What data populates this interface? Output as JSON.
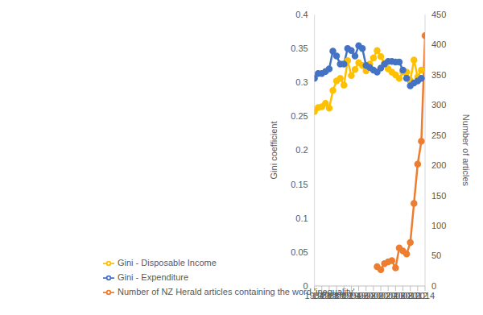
{
  "chart_data": {
    "type": "line",
    "x": [
      1984,
      1985,
      1986,
      1987,
      1988,
      1989,
      1990,
      1991,
      1992,
      1993,
      1994,
      1995,
      1996,
      1997,
      1998,
      1999,
      2000,
      2001,
      2002,
      2003,
      2004,
      2005,
      2006,
      2007,
      2008,
      2009,
      2010,
      2011,
      2012,
      2013,
      2014
    ],
    "series": [
      {
        "name": "Gini - Disposable Income",
        "color": "#ffc000",
        "marker": "circle",
        "values": [
          0.257,
          0.263,
          0.264,
          0.269,
          0.262,
          0.288,
          0.302,
          0.306,
          0.296,
          0.332,
          0.31,
          0.319,
          0.329,
          0.325,
          0.317,
          0.327,
          0.336,
          0.347,
          0.338,
          0.328,
          0.32,
          0.315,
          0.311,
          0.306,
          0.315,
          0.315,
          0.303,
          0.333,
          0.308,
          0.318,
          null
        ]
      },
      {
        "name": "Gini - Expenditure",
        "color": "#4472c4",
        "marker": "circle",
        "values": [
          0.306,
          0.313,
          0.313,
          0.316,
          0.32,
          0.346,
          0.339,
          0.327,
          0.327,
          0.35,
          0.347,
          0.339,
          0.354,
          0.35,
          0.325,
          0.322,
          0.318,
          0.315,
          0.321,
          0.327,
          0.331,
          0.331,
          0.33,
          0.33,
          0.318,
          0.306,
          0.295,
          0.299,
          0.302,
          0.306,
          null
        ]
      },
      {
        "name": "Number of NZ Herald articles containing the word 'inequality'",
        "color": "#ed7d31",
        "marker": "circle",
        "axis": "y2",
        "values": [
          null,
          null,
          null,
          null,
          null,
          null,
          null,
          null,
          null,
          null,
          null,
          null,
          null,
          null,
          null,
          null,
          null,
          32,
          27,
          37,
          40,
          42,
          30,
          63,
          58,
          53,
          72,
          137,
          202,
          240,
          415
        ]
      }
    ],
    "y_label": "Gini coefficient",
    "y2_label": "Number of articles",
    "xlim": [
      1984,
      2014
    ],
    "xticks": [
      1984,
      1986,
      1988,
      1990,
      1992,
      1994,
      1996,
      1998,
      2000,
      2002,
      2004,
      2006,
      2008,
      2010,
      2012,
      2014
    ],
    "ylim": [
      0,
      0.4
    ],
    "yticks": [
      0,
      0.05,
      0.1,
      0.15,
      0.2,
      0.25,
      0.3,
      0.35,
      0.4
    ],
    "y2lim": [
      0,
      450
    ],
    "y2ticks": [
      0,
      50,
      100,
      150,
      200,
      250,
      300,
      350,
      400,
      450
    ],
    "grid": false,
    "legend": "bottom"
  }
}
